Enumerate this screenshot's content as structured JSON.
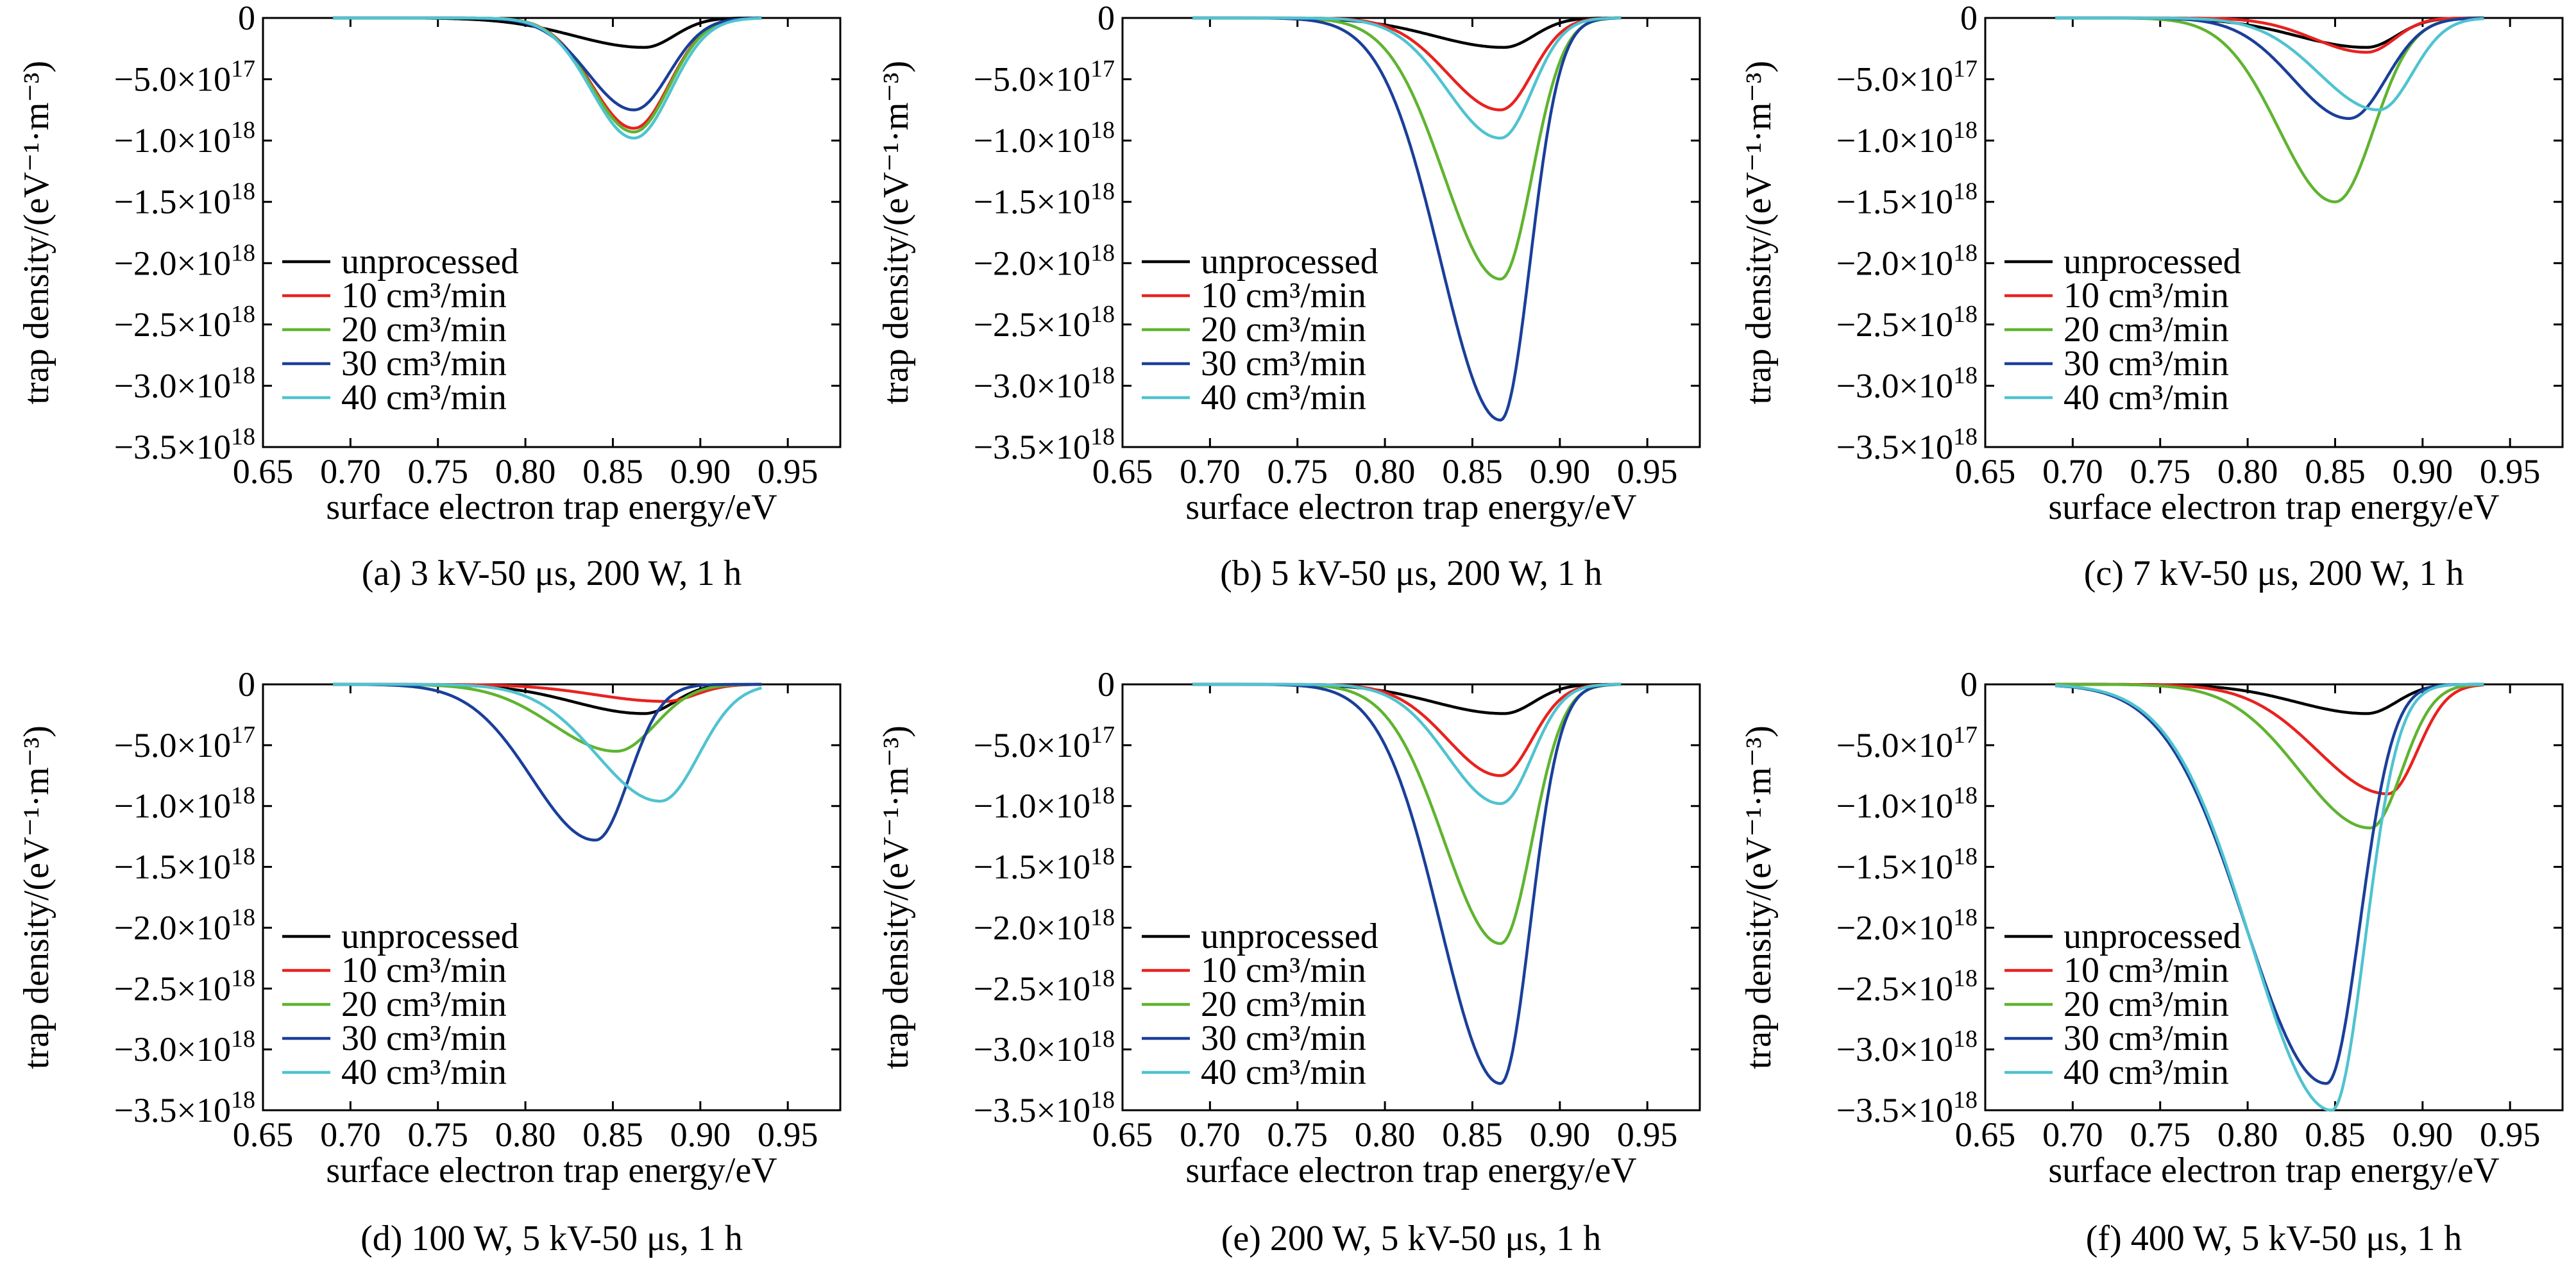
{
  "figure": {
    "series_colors": [
      "#000000",
      "#e8221f",
      "#5fb430",
      "#1a3f9a",
      "#4fc3d0"
    ],
    "legend": [
      "unprocessed",
      "10 cm³/min",
      "20 cm³/min",
      "30 cm³/min",
      "40 cm³/min"
    ]
  },
  "chart_data": [
    {
      "type": "line",
      "caption": "(a) 3 kV-50 μs, 200 W, 1 h",
      "xlabel": "surface electron trap energy/eV",
      "ylabel": "trap density/(eV⁻¹·m⁻³)",
      "xlim": [
        0.65,
        0.98
      ],
      "ylim": [
        -3.5e+18,
        0
      ],
      "xticks": [
        "0.65",
        "0.70",
        "0.75",
        "0.80",
        "0.85",
        "0.90",
        "0.95"
      ],
      "yticks": [
        {
          "m": "0",
          "e": ""
        },
        {
          "m": "−5.0×10",
          "e": "17"
        },
        {
          "m": "−1.0×10",
          "e": "18"
        },
        {
          "m": "−1.5×10",
          "e": "18"
        },
        {
          "m": "−2.0×10",
          "e": "18"
        },
        {
          "m": "−2.5×10",
          "e": "18"
        },
        {
          "m": "−3.0×10",
          "e": "18"
        },
        {
          "m": "−3.5×10",
          "e": "18"
        }
      ],
      "legend_position": "lower-left",
      "series": [
        {
          "name": "unprocessed",
          "peak": 0.868,
          "depth": -2.4e+17,
          "w_left": 0.04,
          "w_right": 0.017
        },
        {
          "name": "10 cm³/min",
          "peak": 0.862,
          "depth": -9e+17,
          "w_left": 0.024,
          "w_right": 0.02
        },
        {
          "name": "20 cm³/min",
          "peak": 0.862,
          "depth": -9.3e+17,
          "w_left": 0.024,
          "w_right": 0.02
        },
        {
          "name": "30 cm³/min",
          "peak": 0.862,
          "depth": -7.5e+17,
          "w_left": 0.026,
          "w_right": 0.02
        },
        {
          "name": "40 cm³/min",
          "peak": 0.862,
          "depth": -9.8e+17,
          "w_left": 0.024,
          "w_right": 0.021
        }
      ]
    },
    {
      "type": "line",
      "caption": "(b) 5 kV-50 μs, 200 W, 1 h",
      "xlabel": "surface electron trap energy/eV",
      "ylabel": "trap density/(eV⁻¹·m⁻³)",
      "xlim": [
        0.65,
        0.98
      ],
      "ylim": [
        -3.5e+18,
        0
      ],
      "xticks": [
        "0.65",
        "0.70",
        "0.75",
        "0.80",
        "0.85",
        "0.90",
        "0.95"
      ],
      "yticks": [
        {
          "m": "0",
          "e": ""
        },
        {
          "m": "−5.0×10",
          "e": "17"
        },
        {
          "m": "−1.0×10",
          "e": "18"
        },
        {
          "m": "−1.5×10",
          "e": "18"
        },
        {
          "m": "−2.0×10",
          "e": "18"
        },
        {
          "m": "−2.5×10",
          "e": "18"
        },
        {
          "m": "−3.0×10",
          "e": "18"
        },
        {
          "m": "−3.5×10",
          "e": "18"
        }
      ],
      "legend_position": "lower-left",
      "series": [
        {
          "name": "unprocessed",
          "peak": 0.868,
          "depth": -2.4e+17,
          "w_left": 0.04,
          "w_right": 0.017
        },
        {
          "name": "10 cm³/min",
          "peak": 0.866,
          "depth": -7.5e+17,
          "w_left": 0.03,
          "w_right": 0.018
        },
        {
          "name": "20 cm³/min",
          "peak": 0.866,
          "depth": -2.13e+18,
          "w_left": 0.032,
          "w_right": 0.018
        },
        {
          "name": "30 cm³/min",
          "peak": 0.866,
          "depth": -3.28e+18,
          "w_left": 0.034,
          "w_right": 0.017
        },
        {
          "name": "40 cm³/min",
          "peak": 0.866,
          "depth": -9.8e+17,
          "w_left": 0.03,
          "w_right": 0.018
        }
      ]
    },
    {
      "type": "line",
      "caption": "(c) 7 kV-50 μs, 200 W, 1 h",
      "xlabel": "surface electron trap energy/eV",
      "ylabel": "trap density/(eV⁻¹·m⁻³)",
      "xlim": [
        0.65,
        0.98
      ],
      "ylim": [
        -3.5e+18,
        0
      ],
      "xticks": [
        "0.65",
        "0.70",
        "0.75",
        "0.80",
        "0.85",
        "0.90",
        "0.95"
      ],
      "yticks": [
        {
          "m": "0",
          "e": ""
        },
        {
          "m": "−5.0×10",
          "e": "17"
        },
        {
          "m": "−1.0×10",
          "e": "18"
        },
        {
          "m": "−1.5×10",
          "e": "18"
        },
        {
          "m": "−2.0×10",
          "e": "18"
        },
        {
          "m": "−2.5×10",
          "e": "18"
        },
        {
          "m": "−3.0×10",
          "e": "18"
        },
        {
          "m": "−3.5×10",
          "e": "18"
        }
      ],
      "legend_position": "lower-left",
      "series": [
        {
          "name": "unprocessed",
          "peak": 0.868,
          "depth": -2.4e+17,
          "w_left": 0.04,
          "w_right": 0.017
        },
        {
          "name": "10 cm³/min",
          "peak": 0.868,
          "depth": -2.8e+17,
          "w_left": 0.03,
          "w_right": 0.016
        },
        {
          "name": "20 cm³/min",
          "peak": 0.85,
          "depth": -1.5e+18,
          "w_left": 0.032,
          "w_right": 0.022
        },
        {
          "name": "30 cm³/min",
          "peak": 0.858,
          "depth": -8.2e+17,
          "w_left": 0.032,
          "w_right": 0.021
        },
        {
          "name": "40 cm³/min",
          "peak": 0.875,
          "depth": -7.5e+17,
          "w_left": 0.034,
          "w_right": 0.019
        }
      ]
    },
    {
      "type": "line",
      "caption": "(d) 100 W, 5 kV-50 μs, 1 h",
      "xlabel": "surface electron trap energy/eV",
      "ylabel": "trap density/(eV⁻¹·m⁻³)",
      "xlim": [
        0.65,
        0.98
      ],
      "ylim": [
        -3.5e+18,
        0
      ],
      "xticks": [
        "0.65",
        "0.70",
        "0.75",
        "0.80",
        "0.85",
        "0.90",
        "0.95"
      ],
      "yticks": [
        {
          "m": "0",
          "e": ""
        },
        {
          "m": "−5.0×10",
          "e": "17"
        },
        {
          "m": "−1.0×10",
          "e": "18"
        },
        {
          "m": "−1.5×10",
          "e": "18"
        },
        {
          "m": "−2.0×10",
          "e": "18"
        },
        {
          "m": "−2.5×10",
          "e": "18"
        },
        {
          "m": "−3.0×10",
          "e": "18"
        },
        {
          "m": "−3.5×10",
          "e": "18"
        }
      ],
      "legend_position": "lower-left",
      "series": [
        {
          "name": "unprocessed",
          "peak": 0.868,
          "depth": -2.4e+17,
          "w_left": 0.04,
          "w_right": 0.017
        },
        {
          "name": "10 cm³/min",
          "peak": 0.88,
          "depth": -1.4e+17,
          "w_left": 0.04,
          "w_right": 0.017
        },
        {
          "name": "20 cm³/min",
          "peak": 0.852,
          "depth": -5.5e+17,
          "w_left": 0.036,
          "w_right": 0.022
        },
        {
          "name": "30 cm³/min",
          "peak": 0.84,
          "depth": -1.28e+18,
          "w_left": 0.036,
          "w_right": 0.019
        },
        {
          "name": "40 cm³/min",
          "peak": 0.877,
          "depth": -9.6e+17,
          "w_left": 0.036,
          "w_right": 0.022
        }
      ]
    },
    {
      "type": "line",
      "caption": "(e) 200 W, 5 kV-50 μs, 1 h",
      "xlabel": "surface electron trap energy/eV",
      "ylabel": "trap density/(eV⁻¹·m⁻³)",
      "xlim": [
        0.65,
        0.98
      ],
      "ylim": [
        -3.5e+18,
        0
      ],
      "xticks": [
        "0.65",
        "0.70",
        "0.75",
        "0.80",
        "0.85",
        "0.90",
        "0.95"
      ],
      "yticks": [
        {
          "m": "0",
          "e": ""
        },
        {
          "m": "−5.0×10",
          "e": "17"
        },
        {
          "m": "−1.0×10",
          "e": "18"
        },
        {
          "m": "−1.5×10",
          "e": "18"
        },
        {
          "m": "−2.0×10",
          "e": "18"
        },
        {
          "m": "−2.5×10",
          "e": "18"
        },
        {
          "m": "−3.0×10",
          "e": "18"
        },
        {
          "m": "−3.5×10",
          "e": "18"
        }
      ],
      "legend_position": "lower-left",
      "series": [
        {
          "name": "unprocessed",
          "peak": 0.868,
          "depth": -2.4e+17,
          "w_left": 0.04,
          "w_right": 0.017
        },
        {
          "name": "10 cm³/min",
          "peak": 0.866,
          "depth": -7.5e+17,
          "w_left": 0.03,
          "w_right": 0.018
        },
        {
          "name": "20 cm³/min",
          "peak": 0.866,
          "depth": -2.13e+18,
          "w_left": 0.032,
          "w_right": 0.018
        },
        {
          "name": "30 cm³/min",
          "peak": 0.866,
          "depth": -3.28e+18,
          "w_left": 0.034,
          "w_right": 0.017
        },
        {
          "name": "40 cm³/min",
          "peak": 0.866,
          "depth": -9.8e+17,
          "w_left": 0.03,
          "w_right": 0.018
        }
      ]
    },
    {
      "type": "line",
      "caption": "(f) 400 W, 5 kV-50 μs, 1 h",
      "xlabel": "surface electron trap energy/eV",
      "ylabel": "trap density/(eV⁻¹·m⁻³)",
      "xlim": [
        0.65,
        0.98
      ],
      "ylim": [
        -3.5e+18,
        0
      ],
      "xticks": [
        "0.65",
        "0.70",
        "0.75",
        "0.80",
        "0.85",
        "0.90",
        "0.95"
      ],
      "yticks": [
        {
          "m": "0",
          "e": ""
        },
        {
          "m": "−5.0×10",
          "e": "17"
        },
        {
          "m": "−1.0×10",
          "e": "18"
        },
        {
          "m": "−1.5×10",
          "e": "18"
        },
        {
          "m": "−2.0×10",
          "e": "18"
        },
        {
          "m": "−2.5×10",
          "e": "18"
        },
        {
          "m": "−3.0×10",
          "e": "18"
        },
        {
          "m": "−3.5×10",
          "e": "18"
        }
      ],
      "legend_position": "lower-left",
      "series": [
        {
          "name": "unprocessed",
          "peak": 0.868,
          "depth": -2.4e+17,
          "w_left": 0.04,
          "w_right": 0.017
        },
        {
          "name": "10 cm³/min",
          "peak": 0.88,
          "depth": -9e+17,
          "w_left": 0.04,
          "w_right": 0.017
        },
        {
          "name": "20 cm³/min",
          "peak": 0.87,
          "depth": -1.18e+18,
          "w_left": 0.04,
          "w_right": 0.018
        },
        {
          "name": "30 cm³/min",
          "peak": 0.845,
          "depth": -3.28e+18,
          "w_left": 0.046,
          "w_right": 0.019
        },
        {
          "name": "40 cm³/min",
          "peak": 0.848,
          "depth": -3.5e+18,
          "w_left": 0.046,
          "w_right": 0.019
        }
      ]
    }
  ]
}
